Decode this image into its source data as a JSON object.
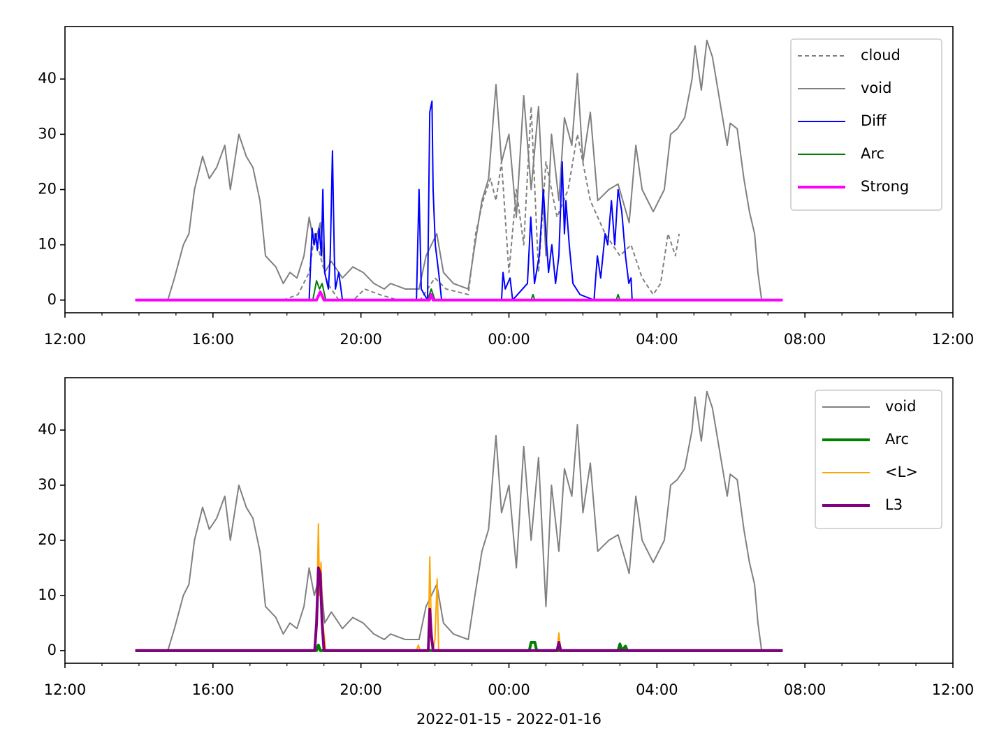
{
  "chart_data": [
    {
      "type": "line",
      "legend": "upper right",
      "xlim": [
        12,
        36
      ],
      "ylim": [
        -2.3,
        49.5
      ],
      "yticks": [
        0,
        10,
        20,
        30,
        40
      ],
      "xticks": [
        {
          "value": 12,
          "label": "12:00"
        },
        {
          "value": 16,
          "label": "16:00"
        },
        {
          "value": 20,
          "label": "20:00"
        },
        {
          "value": 24,
          "label": "00:00"
        },
        {
          "value": 28,
          "label": "04:00"
        },
        {
          "value": 32,
          "label": "08:00"
        },
        {
          "value": 36,
          "label": "12:00"
        }
      ],
      "xminorticks": [
        13,
        14,
        15,
        17,
        18,
        19,
        21,
        22,
        23,
        25,
        26,
        27,
        29,
        30,
        31,
        33,
        34,
        35
      ],
      "series": [
        {
          "name": "cloud",
          "color": "#808080",
          "dashed": true,
          "linewidth": 2,
          "x": [
            17.9,
            18.3,
            18.6,
            18.75,
            18.9,
            19.1,
            19.4,
            19.8,
            20.1,
            20.5,
            21.0,
            21.6,
            22.0,
            22.3,
            22.9,
            23.1,
            23.3,
            23.5,
            23.65,
            23.8,
            24.0,
            24.2,
            24.4,
            24.6,
            24.8,
            25.0,
            25.3,
            25.6,
            25.85,
            26.2,
            26.6,
            27.0,
            27.3,
            27.6,
            27.9,
            28.1,
            28.3,
            28.5,
            28.6
          ],
          "values": [
            0,
            1,
            5,
            12,
            8,
            3,
            0,
            0,
            2,
            1,
            0,
            0,
            4,
            2,
            1,
            12,
            18,
            22,
            18,
            25,
            5,
            20,
            10,
            35,
            5,
            25,
            15,
            20,
            30,
            18,
            12,
            8,
            10,
            4,
            1,
            3,
            12,
            8,
            12
          ]
        },
        {
          "name": "void",
          "color": "#808080",
          "linewidth": 2,
          "x": [
            13.9,
            14.78,
            14.96,
            15.2,
            15.35,
            15.5,
            15.72,
            15.9,
            16.1,
            16.32,
            16.47,
            16.7,
            16.9,
            17.08,
            17.27,
            17.42,
            17.7,
            17.9,
            18.08,
            18.27,
            18.46,
            18.6,
            18.74,
            18.9,
            19.02,
            19.2,
            19.5,
            19.78,
            20.06,
            20.35,
            20.63,
            20.8,
            21.2,
            21.57,
            21.76,
            22.05,
            22.23,
            22.5,
            22.9,
            23.08,
            23.27,
            23.45,
            23.65,
            23.8,
            24.0,
            24.2,
            24.4,
            24.6,
            24.8,
            25.0,
            25.15,
            25.35,
            25.5,
            25.7,
            25.85,
            26.0,
            26.2,
            26.4,
            26.7,
            26.95,
            27.25,
            27.43,
            27.6,
            27.9,
            28.2,
            28.37,
            28.55,
            28.75,
            28.95,
            29.03,
            29.2,
            29.35,
            29.5,
            29.7,
            29.9,
            29.98,
            30.17,
            30.35,
            30.5,
            30.64,
            30.73,
            30.83,
            31.4
          ],
          "values": [
            0,
            0,
            4,
            10,
            12,
            20,
            26,
            22,
            24,
            28,
            20,
            30,
            26,
            24,
            18,
            8,
            6,
            3,
            5,
            4,
            8,
            15,
            10,
            14,
            5,
            7,
            4,
            6,
            5,
            3,
            2,
            3,
            2,
            2,
            8,
            12,
            5,
            3,
            2,
            10,
            18,
            22,
            39,
            25,
            30,
            15,
            37,
            20,
            35,
            8,
            30,
            18,
            33,
            28,
            41,
            25,
            34,
            18,
            20,
            21,
            14,
            28,
            20,
            16,
            20,
            30,
            31,
            33,
            40,
            46,
            38,
            47,
            44,
            36,
            28,
            32,
            31,
            22,
            16,
            12,
            5,
            0,
            0
          ]
        },
        {
          "name": "Diff",
          "color": "#0000ff",
          "linewidth": 2,
          "x": [
            13.9,
            18.6,
            18.68,
            18.73,
            18.78,
            18.82,
            18.87,
            18.93,
            18.97,
            19.02,
            19.12,
            19.17,
            19.23,
            19.28,
            19.31,
            19.4,
            19.5,
            21.5,
            21.57,
            21.63,
            21.8,
            21.86,
            21.89,
            21.92,
            21.95,
            22.01,
            22.1,
            22.18,
            23.8,
            23.84,
            23.9,
            24.03,
            24.1,
            24.5,
            24.59,
            24.65,
            24.69,
            24.82,
            24.93,
            25.0,
            25.07,
            25.16,
            25.26,
            25.35,
            25.44,
            25.5,
            25.54,
            25.63,
            25.73,
            25.92,
            26.3,
            26.39,
            26.48,
            26.6,
            26.67,
            26.77,
            26.86,
            26.95,
            27.05,
            27.15,
            27.24,
            27.3,
            27.33,
            31.4
          ],
          "values": [
            0,
            0,
            13,
            10,
            12,
            9,
            13,
            8,
            20,
            5,
            2,
            8,
            27,
            8,
            2,
            5,
            0,
            0,
            20,
            2,
            0,
            34,
            35,
            36,
            20,
            10,
            5,
            0,
            0,
            5,
            2,
            4,
            0,
            3,
            15,
            8,
            3,
            8,
            20,
            12,
            5,
            10,
            3,
            8,
            25,
            12,
            18,
            10,
            3,
            1,
            0,
            8,
            4,
            12,
            10,
            18,
            10,
            20,
            16,
            8,
            3,
            4,
            0,
            0
          ]
        },
        {
          "name": "Arc",
          "color": "#008000",
          "linewidth": 2,
          "x": [
            13.9,
            18.7,
            18.8,
            18.88,
            18.95,
            19.05,
            21.8,
            21.9,
            22.0,
            24.6,
            24.65,
            24.7,
            26.9,
            26.95,
            27.0,
            31.4
          ],
          "values": [
            0,
            0,
            3.5,
            2,
            3,
            0,
            0,
            2,
            0,
            0,
            1,
            0,
            0,
            1,
            0,
            0
          ]
        },
        {
          "name": "Strong",
          "color": "#ff00ff",
          "linewidth": 4,
          "x": [
            13.9,
            18.8,
            18.9,
            19.0,
            21.85,
            21.9,
            21.95,
            31.4
          ],
          "values": [
            0,
            0,
            1.5,
            0,
            0,
            1,
            0,
            0
          ]
        }
      ]
    },
    {
      "type": "line",
      "legend": "upper right",
      "xlabel": "2022-01-15 - 2022-01-16",
      "xlim": [
        12,
        36
      ],
      "ylim": [
        -2.3,
        49.5
      ],
      "yticks": [
        0,
        10,
        20,
        30,
        40
      ],
      "xticks": [
        {
          "value": 12,
          "label": "12:00"
        },
        {
          "value": 16,
          "label": "16:00"
        },
        {
          "value": 20,
          "label": "20:00"
        },
        {
          "value": 24,
          "label": "00:00"
        },
        {
          "value": 28,
          "label": "04:00"
        },
        {
          "value": 32,
          "label": "08:00"
        },
        {
          "value": 36,
          "label": "12:00"
        }
      ],
      "xminorticks": [
        13,
        14,
        15,
        17,
        18,
        19,
        21,
        22,
        23,
        25,
        26,
        27,
        29,
        30,
        31,
        33,
        34,
        35
      ],
      "series": [
        {
          "name": "void",
          "color": "#808080",
          "linewidth": 2,
          "x": [
            13.9,
            14.78,
            14.96,
            15.2,
            15.35,
            15.5,
            15.72,
            15.9,
            16.1,
            16.32,
            16.47,
            16.7,
            16.9,
            17.08,
            17.27,
            17.42,
            17.7,
            17.9,
            18.08,
            18.27,
            18.46,
            18.6,
            18.74,
            18.9,
            19.02,
            19.2,
            19.5,
            19.78,
            20.06,
            20.35,
            20.63,
            20.8,
            21.2,
            21.57,
            21.76,
            22.05,
            22.23,
            22.5,
            22.9,
            23.08,
            23.27,
            23.45,
            23.65,
            23.8,
            24.0,
            24.2,
            24.4,
            24.6,
            24.8,
            25.0,
            25.15,
            25.35,
            25.5,
            25.7,
            25.85,
            26.0,
            26.2,
            26.4,
            26.7,
            26.95,
            27.25,
            27.43,
            27.6,
            27.9,
            28.2,
            28.37,
            28.55,
            28.75,
            28.95,
            29.03,
            29.2,
            29.35,
            29.5,
            29.7,
            29.9,
            29.98,
            30.17,
            30.35,
            30.5,
            30.64,
            30.73,
            30.83,
            31.4
          ],
          "values": [
            0,
            0,
            4,
            10,
            12,
            20,
            26,
            22,
            24,
            28,
            20,
            30,
            26,
            24,
            18,
            8,
            6,
            3,
            5,
            4,
            8,
            15,
            10,
            14,
            5,
            7,
            4,
            6,
            5,
            3,
            2,
            3,
            2,
            2,
            8,
            12,
            5,
            3,
            2,
            10,
            18,
            22,
            39,
            25,
            30,
            15,
            37,
            20,
            35,
            8,
            30,
            18,
            33,
            28,
            41,
            25,
            34,
            18,
            20,
            21,
            14,
            28,
            20,
            16,
            20,
            30,
            31,
            33,
            40,
            46,
            38,
            47,
            44,
            36,
            28,
            32,
            31,
            22,
            16,
            12,
            5,
            0,
            0
          ]
        },
        {
          "name": "Arc",
          "color": "#008000",
          "linewidth": 4,
          "x": [
            13.9,
            18.8,
            18.85,
            18.9,
            24.55,
            24.6,
            24.65,
            24.7,
            24.75,
            26.95,
            27.0,
            27.05,
            27.15,
            27.2,
            31.4
          ],
          "values": [
            0,
            0,
            1,
            0,
            0,
            1.5,
            1.5,
            1.5,
            0,
            0,
            1.2,
            0,
            0.8,
            0,
            0
          ]
        },
        {
          "name": "<L>",
          "color": "#ffa500",
          "linewidth": 2,
          "x": [
            13.9,
            18.75,
            18.8,
            18.85,
            18.88,
            18.92,
            18.97,
            19.05,
            21.5,
            21.55,
            21.6,
            21.82,
            21.86,
            21.9,
            21.95,
            22.0,
            22.06,
            22.1,
            25.3,
            25.35,
            25.4,
            31.4
          ],
          "values": [
            0,
            0,
            5,
            23,
            10,
            16,
            5,
            0,
            0,
            1,
            0,
            0,
            17,
            5,
            0,
            2,
            13,
            0,
            0,
            3.2,
            0,
            0
          ]
        },
        {
          "name": "L3",
          "color": "#800080",
          "linewidth": 4,
          "x": [
            13.9,
            18.75,
            18.8,
            18.85,
            18.9,
            18.95,
            19.0,
            21.82,
            21.86,
            21.9,
            21.95,
            25.3,
            25.35,
            25.4,
            31.4
          ],
          "values": [
            0,
            0,
            5,
            15,
            14,
            5,
            0,
            0,
            7.5,
            3,
            0,
            0,
            1.5,
            0,
            0
          ]
        }
      ]
    }
  ]
}
